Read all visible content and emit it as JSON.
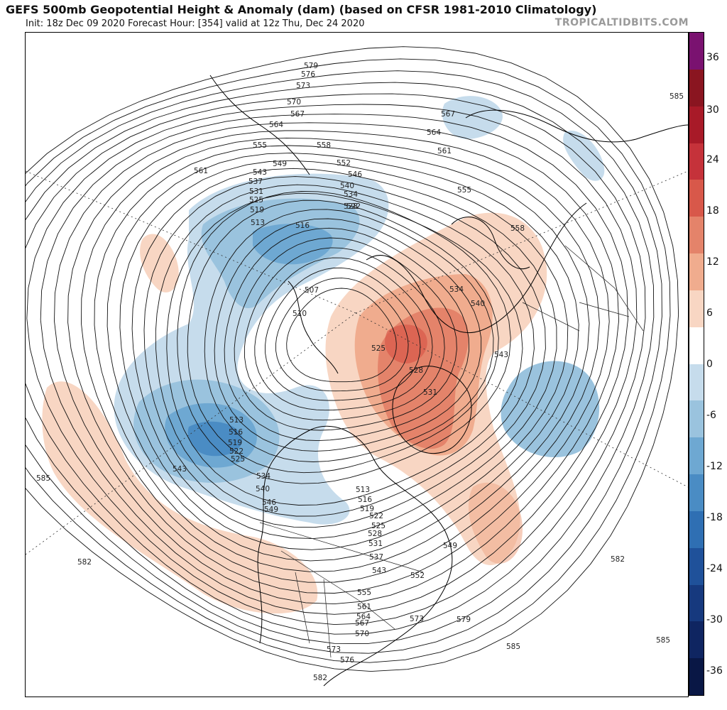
{
  "header": {
    "title": "GEFS 500mb Geopotential Height & Anomaly (dam) (based on CFSR 1981-2010 Climatology)",
    "subtitle": "Init: 18z Dec 09 2020   Forecast Hour: [354]   valid at 12z Thu, Dec 24 2020",
    "watermark": "TROPICALTIDBITS.COM"
  },
  "colorbar": {
    "ticks": [
      "36",
      "30",
      "24",
      "18",
      "12",
      "6",
      "0",
      "-6",
      "-12",
      "-18",
      "-24",
      "-30",
      "-36"
    ],
    "colors": [
      "#7a1270",
      "#8a1520",
      "#a81a28",
      "#c5323a",
      "#d8584a",
      "#e4836a",
      "#f0ac8e",
      "#f8d6c3",
      "#ffffff",
      "#c6dcec",
      "#9ac3de",
      "#6ea8d2",
      "#4a8cc4",
      "#2f6fb3",
      "#1f519a",
      "#16397e",
      "#0f2561",
      "#091745"
    ]
  },
  "map": {
    "contour_labels": [
      "579",
      "576",
      "573",
      "570",
      "567",
      "564",
      "561",
      "558",
      "555",
      "552",
      "549",
      "546",
      "543",
      "540",
      "537",
      "534",
      "531",
      "528",
      "525",
      "522",
      "519",
      "516",
      "513",
      "510",
      "507",
      "585",
      "582",
      "573",
      "585",
      "585",
      "582",
      "582",
      "585",
      "567",
      "564",
      "561",
      "555",
      "558",
      "534",
      "540",
      "543",
      "525",
      "528",
      "531",
      "513",
      "516",
      "519",
      "522",
      "525",
      "528",
      "531",
      "537",
      "543",
      "549",
      "552",
      "555",
      "561",
      "564",
      "567",
      "570",
      "573",
      "576",
      "579",
      "513",
      "516",
      "519",
      "522",
      "525",
      "534",
      "540",
      "546",
      "549",
      "543"
    ]
  }
}
